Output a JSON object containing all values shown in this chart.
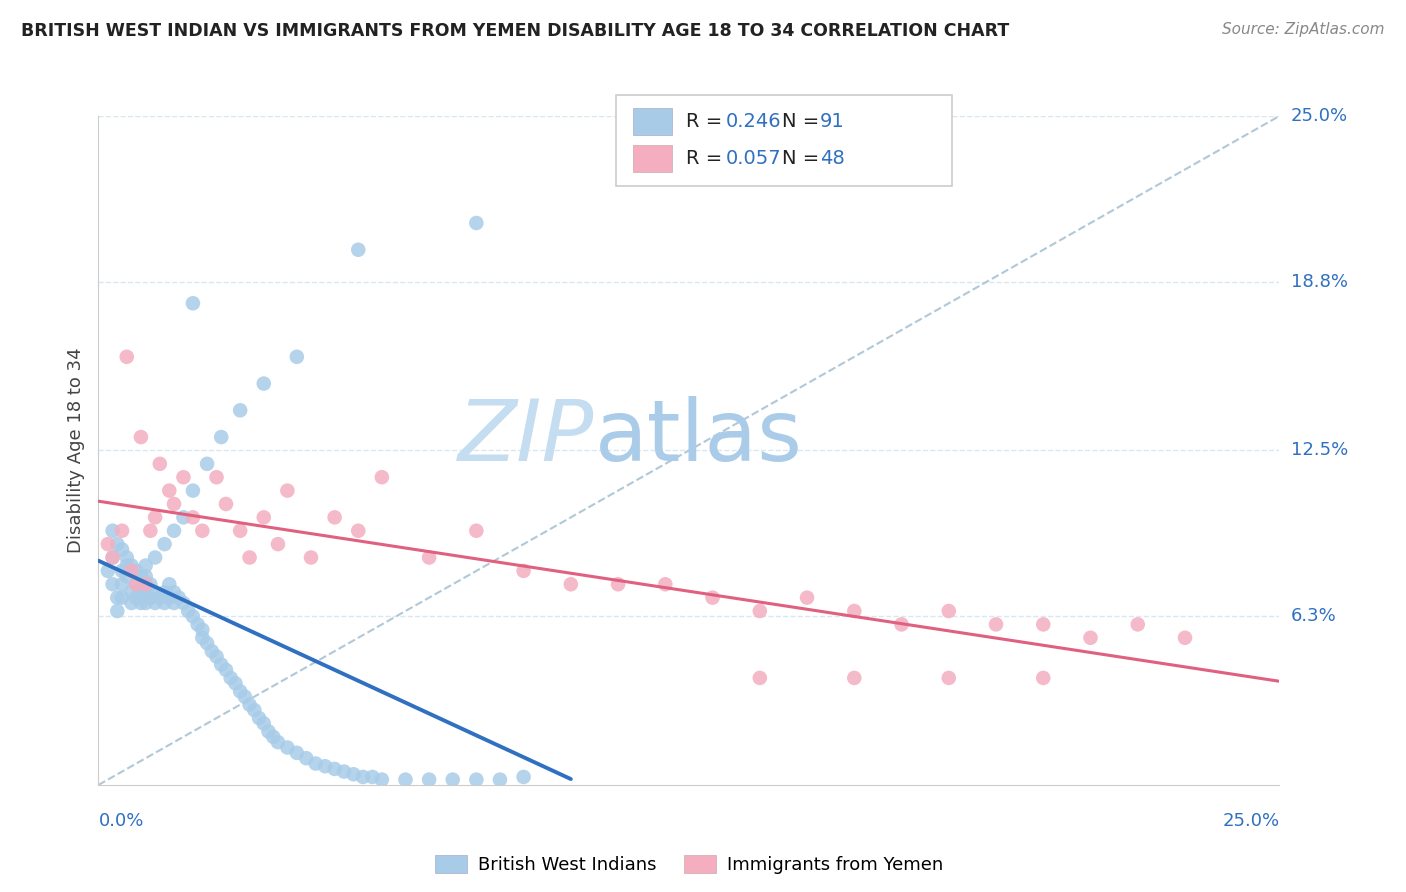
{
  "title": "BRITISH WEST INDIAN VS IMMIGRANTS FROM YEMEN DISABILITY AGE 18 TO 34 CORRELATION CHART",
  "source": "Source: ZipAtlas.com",
  "ylabel": "Disability Age 18 to 34",
  "legend_label1": "British West Indians",
  "legend_label2": "Immigrants from Yemen",
  "R1": 0.246,
  "N1": 91,
  "R2": 0.057,
  "N2": 48,
  "color_blue_scatter": "#a8cce8",
  "color_pink_scatter": "#f4aec0",
  "color_blue_line": "#3070c0",
  "color_pink_line": "#e06080",
  "color_diag": "#b0c8d8",
  "color_grid": "#d8e8f0",
  "xlim": [
    0.0,
    0.25
  ],
  "ylim": [
    0.0,
    0.25
  ],
  "yticks": [
    0.063,
    0.125,
    0.188,
    0.25
  ],
  "ytick_labels": [
    "6.3%",
    "12.5%",
    "18.8%",
    "25.0%"
  ],
  "watermark_zip": "ZIP",
  "watermark_atlas": "atlas",
  "watermark_color": "#c8e0f0",
  "seed": 12,
  "blue_scatter_x": [
    0.002,
    0.003,
    0.003,
    0.004,
    0.004,
    0.005,
    0.005,
    0.005,
    0.006,
    0.006,
    0.007,
    0.007,
    0.008,
    0.008,
    0.009,
    0.009,
    0.01,
    0.01,
    0.01,
    0.011,
    0.011,
    0.012,
    0.012,
    0.013,
    0.014,
    0.014,
    0.015,
    0.015,
    0.016,
    0.016,
    0.017,
    0.018,
    0.019,
    0.02,
    0.021,
    0.022,
    0.022,
    0.023,
    0.024,
    0.025,
    0.026,
    0.027,
    0.028,
    0.029,
    0.03,
    0.031,
    0.032,
    0.033,
    0.034,
    0.035,
    0.036,
    0.037,
    0.038,
    0.04,
    0.042,
    0.044,
    0.046,
    0.048,
    0.05,
    0.052,
    0.054,
    0.056,
    0.058,
    0.06,
    0.065,
    0.07,
    0.075,
    0.08,
    0.085,
    0.09,
    0.003,
    0.004,
    0.005,
    0.006,
    0.007,
    0.008,
    0.009,
    0.01,
    0.012,
    0.014,
    0.016,
    0.018,
    0.02,
    0.023,
    0.026,
    0.03,
    0.035,
    0.042,
    0.055,
    0.08,
    0.02
  ],
  "blue_scatter_y": [
    0.08,
    0.085,
    0.075,
    0.07,
    0.065,
    0.08,
    0.075,
    0.07,
    0.082,
    0.078,
    0.072,
    0.068,
    0.075,
    0.07,
    0.073,
    0.068,
    0.078,
    0.072,
    0.068,
    0.075,
    0.07,
    0.072,
    0.068,
    0.07,
    0.072,
    0.068,
    0.075,
    0.07,
    0.072,
    0.068,
    0.07,
    0.068,
    0.065,
    0.063,
    0.06,
    0.058,
    0.055,
    0.053,
    0.05,
    0.048,
    0.045,
    0.043,
    0.04,
    0.038,
    0.035,
    0.033,
    0.03,
    0.028,
    0.025,
    0.023,
    0.02,
    0.018,
    0.016,
    0.014,
    0.012,
    0.01,
    0.008,
    0.007,
    0.006,
    0.005,
    0.004,
    0.003,
    0.003,
    0.002,
    0.002,
    0.002,
    0.002,
    0.002,
    0.002,
    0.003,
    0.095,
    0.09,
    0.088,
    0.085,
    0.082,
    0.08,
    0.078,
    0.082,
    0.085,
    0.09,
    0.095,
    0.1,
    0.11,
    0.12,
    0.13,
    0.14,
    0.15,
    0.16,
    0.2,
    0.21,
    0.18
  ],
  "pink_scatter_x": [
    0.002,
    0.003,
    0.005,
    0.006,
    0.007,
    0.008,
    0.009,
    0.01,
    0.011,
    0.012,
    0.013,
    0.015,
    0.016,
    0.018,
    0.02,
    0.022,
    0.025,
    0.027,
    0.03,
    0.032,
    0.035,
    0.038,
    0.04,
    0.045,
    0.05,
    0.055,
    0.06,
    0.07,
    0.08,
    0.09,
    0.1,
    0.11,
    0.12,
    0.13,
    0.14,
    0.15,
    0.16,
    0.17,
    0.18,
    0.19,
    0.2,
    0.21,
    0.22,
    0.23,
    0.14,
    0.16,
    0.18,
    0.2
  ],
  "pink_scatter_y": [
    0.09,
    0.085,
    0.095,
    0.16,
    0.08,
    0.075,
    0.13,
    0.075,
    0.095,
    0.1,
    0.12,
    0.11,
    0.105,
    0.115,
    0.1,
    0.095,
    0.115,
    0.105,
    0.095,
    0.085,
    0.1,
    0.09,
    0.11,
    0.085,
    0.1,
    0.095,
    0.115,
    0.085,
    0.095,
    0.08,
    0.075,
    0.075,
    0.075,
    0.07,
    0.065,
    0.07,
    0.065,
    0.06,
    0.065,
    0.06,
    0.06,
    0.055,
    0.06,
    0.055,
    0.04,
    0.04,
    0.04,
    0.04
  ]
}
